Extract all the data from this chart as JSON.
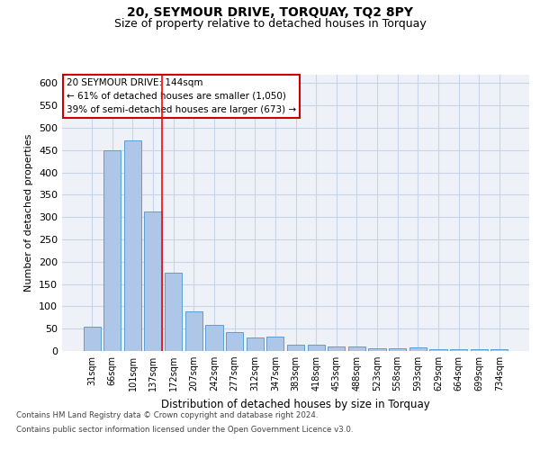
{
  "title": "20, SEYMOUR DRIVE, TORQUAY, TQ2 8PY",
  "subtitle": "Size of property relative to detached houses in Torquay",
  "xlabel": "Distribution of detached houses by size in Torquay",
  "ylabel": "Number of detached properties",
  "categories": [
    "31sqm",
    "66sqm",
    "101sqm",
    "137sqm",
    "172sqm",
    "207sqm",
    "242sqm",
    "277sqm",
    "312sqm",
    "347sqm",
    "383sqm",
    "418sqm",
    "453sqm",
    "488sqm",
    "523sqm",
    "558sqm",
    "593sqm",
    "629sqm",
    "664sqm",
    "699sqm",
    "734sqm"
  ],
  "values": [
    55,
    450,
    472,
    312,
    176,
    89,
    59,
    43,
    30,
    32,
    15,
    15,
    10,
    10,
    6,
    6,
    9,
    4,
    4,
    4,
    5
  ],
  "bar_color": "#aec6e8",
  "bar_edge_color": "#5a9fd4",
  "red_line_index": 3,
  "ylim": [
    0,
    620
  ],
  "yticks": [
    0,
    50,
    100,
    150,
    200,
    250,
    300,
    350,
    400,
    450,
    500,
    550,
    600
  ],
  "annotation_text": "20 SEYMOUR DRIVE: 144sqm\n← 61% of detached houses are smaller (1,050)\n39% of semi-detached houses are larger (673) →",
  "annotation_box_color": "#ffffff",
  "annotation_box_edge": "#cc0000",
  "footer1": "Contains HM Land Registry data © Crown copyright and database right 2024.",
  "footer2": "Contains public sector information licensed under the Open Government Licence v3.0.",
  "bg_color": "#eef2f8",
  "grid_color": "#c8d4e8",
  "title_fontsize": 10,
  "subtitle_fontsize": 9
}
